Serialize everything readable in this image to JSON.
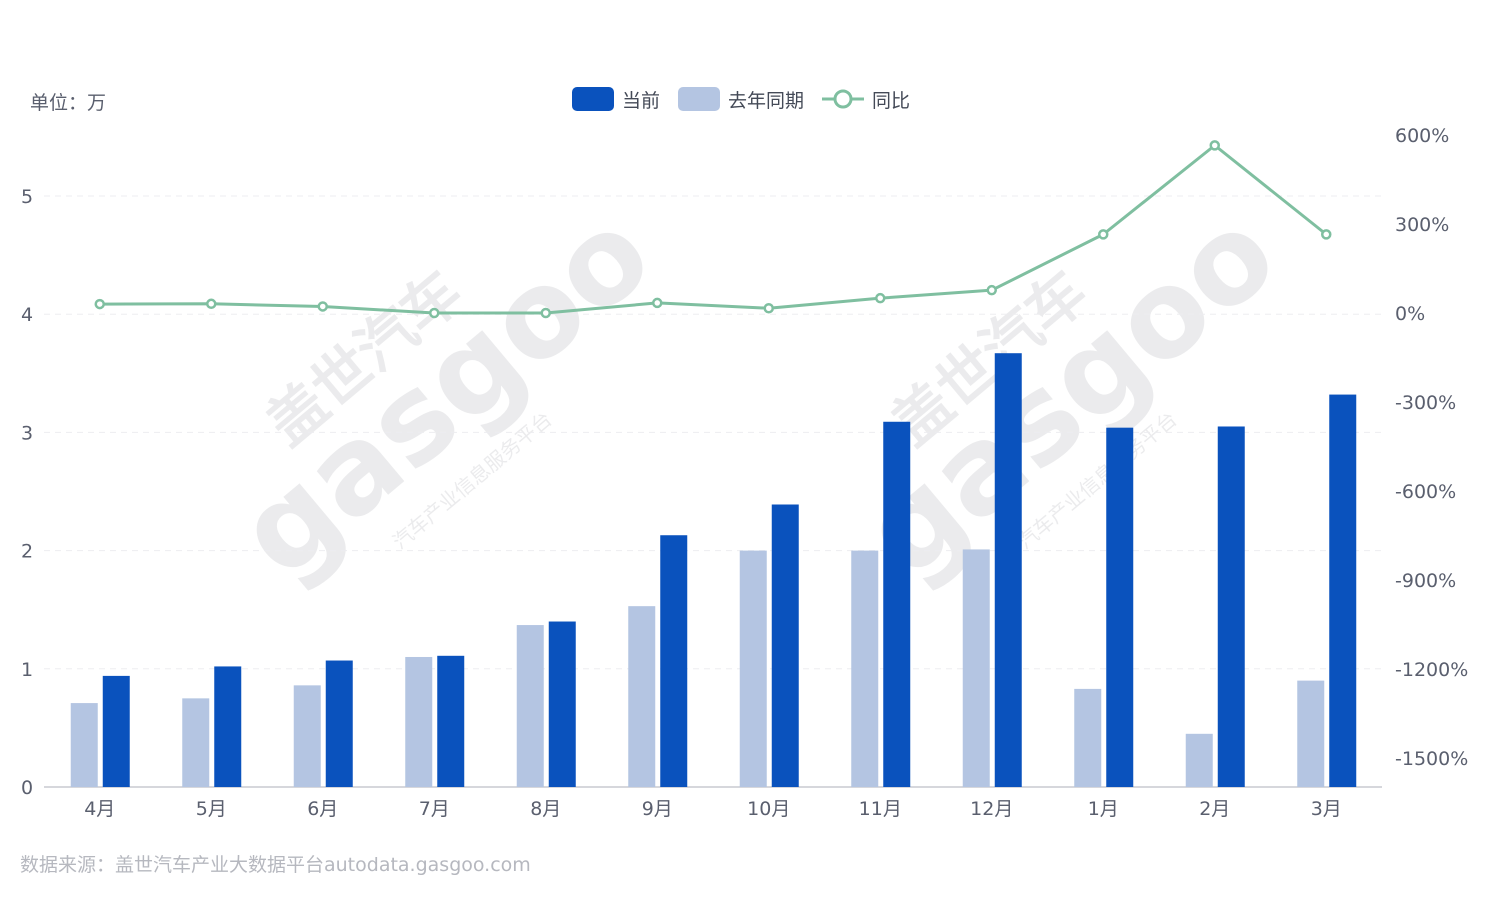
{
  "unit_label": "单位：万",
  "source_note": "数据来源：盖世汽车产业大数据平台autodata.gasgoo.com",
  "watermark": {
    "brand_cn": "盖世汽车",
    "brand_en": "gasgoo",
    "tagline": "汽车产业信息服务平台"
  },
  "colors": {
    "current": "#0a52bd",
    "last_year": "#b4c5e2",
    "yoy": "#7fbfa0",
    "axis_text": "#5a5f6e",
    "grid": "#ededf0"
  },
  "legend": [
    {
      "name": "当前",
      "kind": "bar",
      "color": "#0a52bd"
    },
    {
      "name": "去年同期",
      "kind": "bar",
      "color": "#b4c5e2"
    },
    {
      "name": "同比",
      "kind": "line",
      "color": "#7fbfa0"
    }
  ],
  "chart_data": {
    "type": "bar",
    "title": "",
    "categories": [
      "4月",
      "5月",
      "6月",
      "7月",
      "8月",
      "9月",
      "10月",
      "11月",
      "12月",
      "1月",
      "2月",
      "3月"
    ],
    "series": [
      {
        "name": "去年同期",
        "type": "bar",
        "axis": "left",
        "values": [
          0.71,
          0.75,
          0.86,
          1.1,
          1.37,
          1.53,
          2.0,
          2.0,
          2.01,
          0.83,
          0.45,
          0.9
        ]
      },
      {
        "name": "当前",
        "type": "bar",
        "axis": "left",
        "values": [
          0.94,
          1.02,
          1.07,
          1.11,
          1.4,
          2.13,
          2.39,
          3.09,
          3.67,
          3.04,
          3.05,
          3.32
        ]
      },
      {
        "name": "同比",
        "type": "line",
        "axis": "right",
        "values": [
          30,
          31,
          22,
          0,
          0,
          34,
          16,
          50,
          77,
          265,
          565,
          265
        ]
      }
    ],
    "left_axis": {
      "ticks": [
        "0",
        "1",
        "2",
        "3",
        "4",
        "5"
      ],
      "min": 0,
      "max": 5.5
    },
    "right_axis": {
      "ticks": [
        "600%",
        "300%",
        "0%",
        "-300%",
        "-600%",
        "-900%",
        "-1200%",
        "-1500%"
      ],
      "min": -1600,
      "max": 600
    },
    "grid": true,
    "legend_position": "top-center"
  }
}
